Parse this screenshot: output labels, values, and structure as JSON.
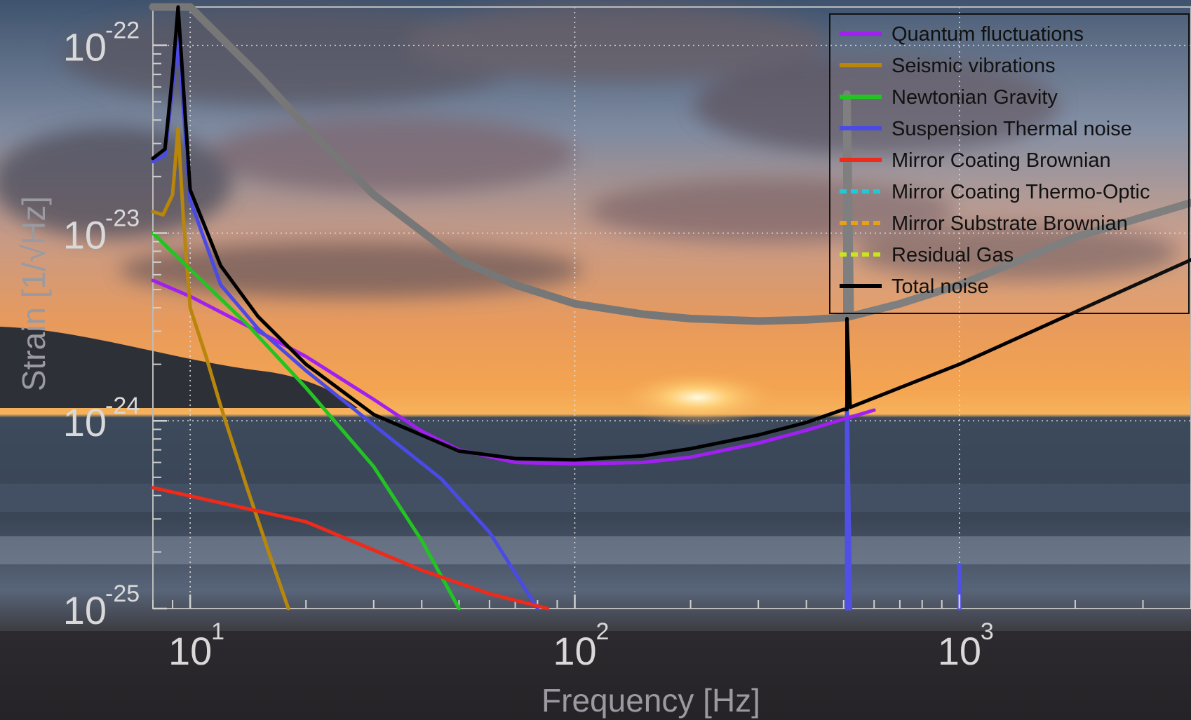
{
  "chart_data": {
    "type": "line",
    "xlabel": "Frequency [Hz]",
    "ylabel": "Strain [1/√Hz]",
    "xscale": "log",
    "yscale": "log",
    "xlim": [
      8,
      4000
    ],
    "ylim": [
      1e-25,
      1.6e-22
    ],
    "grid": true,
    "legend_position": "top-right",
    "x_ticks": [
      10,
      100,
      1000
    ],
    "y_ticks": [
      1e-25,
      1e-24,
      1e-23,
      1e-22
    ],
    "x_tick_labels": [
      {
        "base": "10",
        "exp": "1"
      },
      {
        "base": "10",
        "exp": "2"
      },
      {
        "base": "10",
        "exp": "3"
      }
    ],
    "y_tick_labels": [
      {
        "base": "10",
        "exp": "-25"
      },
      {
        "base": "10",
        "exp": "-24"
      },
      {
        "base": "10",
        "exp": "-23"
      },
      {
        "base": "10",
        "exp": "-22"
      }
    ],
    "series": [
      {
        "name": "Quantum fluctuations",
        "color": "#a020f0",
        "dashed": false,
        "width": 5,
        "x": [
          8,
          10,
          15,
          20,
          30,
          40,
          50,
          70,
          100,
          150,
          200,
          300,
          400,
          500,
          600
        ],
        "y": [
          5.6e-24,
          4.6e-24,
          3e-24,
          2.2e-24,
          1.3e-24,
          8.8e-25,
          7e-25,
          6e-25,
          5.9e-25,
          6e-25,
          6.4e-25,
          7.6e-25,
          8.9e-25,
          1.02e-24,
          1.14e-24
        ]
      },
      {
        "name": "Seismic vibrations",
        "color": "#b8860b",
        "dashed": false,
        "width": 5,
        "x": [
          8,
          8.5,
          9,
          9.3,
          9.6,
          10,
          11,
          12,
          14,
          16,
          18
        ],
        "y": [
          1.3e-23,
          1.25e-23,
          1.6e-23,
          3.6e-23,
          1.2e-23,
          4e-24,
          2.2e-24,
          1.2e-24,
          4.5e-25,
          2e-25,
          1e-25
        ]
      },
      {
        "name": "Newtonian Gravity",
        "color": "#22c422",
        "dashed": false,
        "width": 5,
        "x": [
          8,
          10,
          14,
          20,
          30,
          40,
          50
        ],
        "y": [
          1e-23,
          6.4e-24,
          3.3e-24,
          1.5e-24,
          5.7e-25,
          2.3e-25,
          1e-25
        ]
      },
      {
        "name": "Suspension Thermal noise",
        "color": "#4a4ae6",
        "dashed": false,
        "width": 5,
        "x": [
          8,
          8.6,
          9.3,
          10,
          12,
          15,
          20,
          30,
          45,
          60,
          80
        ],
        "y": [
          2.4e-23,
          2.6e-23,
          1.1e-22,
          1.5e-23,
          5.3e-24,
          3.1e-24,
          1.85e-24,
          9.5e-25,
          4.9e-25,
          2.55e-25,
          1e-25
        ]
      },
      {
        "name": "Mirror Coating Brownian",
        "color": "#ee2a1a",
        "dashed": false,
        "width": 5,
        "x": [
          8,
          20,
          40,
          60,
          85
        ],
        "y": [
          4.4e-25,
          2.9e-25,
          1.6e-25,
          1.2e-25,
          1e-25
        ]
      },
      {
        "name": "Mirror Coating Thermo-Optic",
        "color": "#22c8d8",
        "dashed": true,
        "width": 4,
        "x": [],
        "y": []
      },
      {
        "name": "Mirror Substrate Brownian",
        "color": "#e6a01a",
        "dashed": true,
        "width": 4,
        "x": [],
        "y": []
      },
      {
        "name": "Residual Gas",
        "color": "#c8e61a",
        "dashed": true,
        "width": 4,
        "x": [],
        "y": []
      },
      {
        "name": "Total noise",
        "color": "#000000",
        "dashed": false,
        "width": 5,
        "x": [
          8,
          8.6,
          9.0,
          9.3,
          9.6,
          10,
          12,
          15,
          20,
          30,
          50,
          70,
          100,
          150,
          200,
          300,
          400,
          500,
          510,
          510,
          520,
          700,
          1000,
          2000,
          4000
        ],
        "y": [
          2.5e-23,
          2.8e-23,
          7e-23,
          1.3e-21,
          6e-23,
          1.7e-23,
          6.7e-24,
          3.6e-24,
          2e-24,
          1.08e-24,
          6.9e-25,
          6.3e-25,
          6.2e-25,
          6.5e-25,
          7.1e-25,
          8.4e-25,
          9.8e-25,
          1.15e-24,
          1.15e-24,
          3.5e-24,
          1.18e-24,
          1.5e-24,
          2e-24,
          3.8e-24,
          7.2e-24
        ]
      }
    ],
    "unlabeled_series": [
      {
        "color": "#777777",
        "width": 11,
        "x": [
          8,
          9,
          10,
          15,
          20,
          30,
          50,
          70,
          100,
          150,
          200,
          300,
          400,
          500,
          510,
          510,
          520,
          700,
          1000,
          2000,
          4000
        ],
        "y": [
          1.5e-21,
          6e-22,
          3e-22,
          7e-23,
          3.7e-23,
          1.6e-23,
          7.2e-24,
          5.3e-24,
          4.2e-24,
          3.7e-24,
          3.5e-24,
          3.4e-24,
          3.45e-24,
          3.55e-24,
          3.55e-24,
          5.5e-23,
          3.6e-24,
          4.2e-24,
          5.3e-24,
          9.5e-24,
          1.45e-23
        ]
      },
      {
        "color": "#5050e6",
        "width": 6,
        "x": [
          510,
          510,
          520
        ],
        "y": [
          1e-25,
          1.2e-24,
          1e-25
        ]
      },
      {
        "color": "#5050e6",
        "width": 6,
        "x": [
          1000,
          1000
        ],
        "y": [
          1e-25,
          1.7e-25
        ]
      }
    ]
  }
}
